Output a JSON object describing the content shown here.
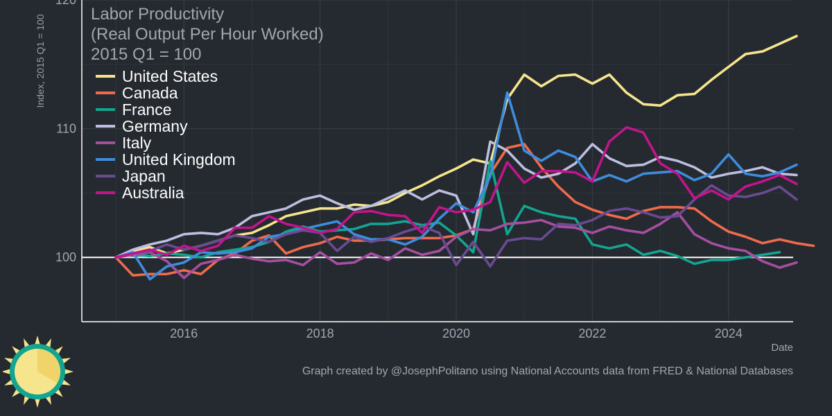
{
  "chart_data": {
    "type": "line",
    "title": "Labor Productivity",
    "subtitle": [
      "(Real Output Per Hour Worked)",
      "2015 Q1 = 100"
    ],
    "xlabel": "Date",
    "ylabel": "Index, 2015 Q1 = 100",
    "xlim": [
      2014.5,
      2024.95
    ],
    "ylim": [
      95,
      120
    ],
    "x_ticks": [
      2016,
      2018,
      2020,
      2022,
      2024
    ],
    "x_tick_labels": [
      "2016",
      "2018",
      "2020",
      "2022",
      "2024"
    ],
    "y_ticks": [
      100,
      110,
      120
    ],
    "y_tick_labels": [
      "100",
      "110",
      "120"
    ],
    "reference_line": 100,
    "grid": true,
    "legend_position": "top-left",
    "caption": "Graph created by @JosephPolitano using National Accounts data from FRED & National Databases",
    "series": [
      {
        "name": "United States",
        "color": "#f7e58e",
        "x_start": 2015.0,
        "values": [
          100,
          100.5,
          100.8,
          100.3,
          100.6,
          100.9,
          101.3,
          101.7,
          101.9,
          102.5,
          103.2,
          103.5,
          103.8,
          103.8,
          104.1,
          104.0,
          104.3,
          105.0,
          105.6,
          106.3,
          106.9,
          107.6,
          107.3,
          112.3,
          114.2,
          113.3,
          114.1,
          114.2,
          113.5,
          114.2,
          112.8,
          111.9,
          111.8,
          112.6,
          112.7,
          113.8,
          114.8,
          115.8,
          116.0,
          116.6,
          117.2
        ]
      },
      {
        "name": "Canada",
        "color": "#ee6b4c",
        "x_start": 2015.0,
        "values": [
          100,
          98.6,
          98.7,
          98.7,
          99.0,
          98.7,
          99.8,
          100.3,
          101.3,
          101.7,
          100.3,
          100.8,
          101.1,
          101.6,
          101.3,
          101.3,
          101.4,
          101.5,
          101.5,
          101.5,
          101.7,
          102.2,
          106.5,
          108.5,
          108.8,
          107.0,
          105.5,
          104.3,
          103.7,
          103.3,
          103.0,
          103.6,
          103.9,
          103.9,
          103.8,
          102.8,
          102.0,
          101.6,
          101.1,
          101.4,
          101.1,
          100.9
        ]
      },
      {
        "name": "France",
        "color": "#13a58f",
        "x_start": 2015.0,
        "values": [
          100,
          100.2,
          100.1,
          100.3,
          100.2,
          100.0,
          100.4,
          100.6,
          100.8,
          101.2,
          102.0,
          102.4,
          102.0,
          102.1,
          102.2,
          102.6,
          102.6,
          102.8,
          102.5,
          102.7,
          101.7,
          100.4,
          107.5,
          101.8,
          104.0,
          103.5,
          103.2,
          103.0,
          101.0,
          100.7,
          101.0,
          100.2,
          100.5,
          100.1,
          99.5,
          99.8,
          99.8,
          100.0,
          100.2,
          100.4
        ]
      },
      {
        "name": "Germany",
        "color": "#bcbfe0",
        "x_start": 2015.0,
        "values": [
          100,
          100.6,
          101.0,
          101.3,
          101.8,
          101.9,
          101.8,
          102.3,
          103.2,
          103.5,
          103.8,
          104.5,
          104.8,
          104.2,
          103.7,
          104.0,
          104.6,
          105.2,
          104.5,
          105.2,
          104.8,
          101.8,
          109.0,
          108.3,
          106.9,
          106.2,
          106.5,
          107.3,
          108.8,
          107.7,
          107.1,
          107.2,
          107.8,
          107.5,
          107.0,
          106.2,
          106.5,
          106.7,
          107.0,
          106.5,
          106.4
        ]
      },
      {
        "name": "Italy",
        "color": "#a64fa1",
        "x_start": 2015.0,
        "values": [
          100,
          100.2,
          100.4,
          99.7,
          98.4,
          99.5,
          99.8,
          100.2,
          99.9,
          99.7,
          99.8,
          99.4,
          100.4,
          99.5,
          99.6,
          100.3,
          99.8,
          100.7,
          100.2,
          100.5,
          101.6,
          102.2,
          102.1,
          102.6,
          102.7,
          102.9,
          102.4,
          102.3,
          101.9,
          102.4,
          102.1,
          101.9,
          102.6,
          103.5,
          101.8,
          101.1,
          100.7,
          100.5,
          99.7,
          99.2,
          99.6
        ]
      },
      {
        "name": "United Kingdom",
        "color": "#3e8ddd",
        "x_start": 2015.0,
        "values": [
          100,
          100.4,
          98.3,
          99.3,
          99.6,
          100.4,
          100.3,
          100.4,
          100.7,
          101.6,
          101.8,
          102.2,
          102.5,
          102.8,
          101.8,
          101.4,
          101.4,
          101.0,
          101.6,
          103.0,
          104.2,
          103.5,
          106.3,
          112.8,
          108.3,
          107.5,
          108.3,
          107.8,
          105.9,
          106.4,
          105.9,
          106.5,
          106.6,
          106.7,
          106.0,
          106.5,
          108.0,
          106.5,
          106.3,
          106.6,
          107.2
        ]
      },
      {
        "name": "Japan",
        "color": "#6a4b92",
        "x_start": 2015.0,
        "values": [
          100,
          100.3,
          100.5,
          101.0,
          100.6,
          100.9,
          101.3,
          101.7,
          101.5,
          101.2,
          101.8,
          102.1,
          101.9,
          100.5,
          101.6,
          101.2,
          101.5,
          102.0,
          102.4,
          101.9,
          99.4,
          101.2,
          99.3,
          101.3,
          101.5,
          101.4,
          102.6,
          102.5,
          102.9,
          103.6,
          103.8,
          103.5,
          103.1,
          103.2,
          104.5,
          105.6,
          104.8,
          104.7,
          105.0,
          105.5,
          104.5
        ]
      },
      {
        "name": "Australia",
        "color": "#c2158c",
        "x_start": 2015.0,
        "values": [
          100,
          100.3,
          100.6,
          100.2,
          100.9,
          100.5,
          100.9,
          102.3,
          102.3,
          103.2,
          102.6,
          102.3,
          101.9,
          102.2,
          103.5,
          103.6,
          103.3,
          103.2,
          101.9,
          103.9,
          103.5,
          103.7,
          104.3,
          107.4,
          105.8,
          106.7,
          106.7,
          106.6,
          105.9,
          109.0,
          110.1,
          109.7,
          107.3,
          106.5,
          104.6,
          105.2,
          104.5,
          105.5,
          105.9,
          106.4,
          105.7
        ]
      }
    ]
  },
  "logo": {
    "name": "sun logo"
  }
}
